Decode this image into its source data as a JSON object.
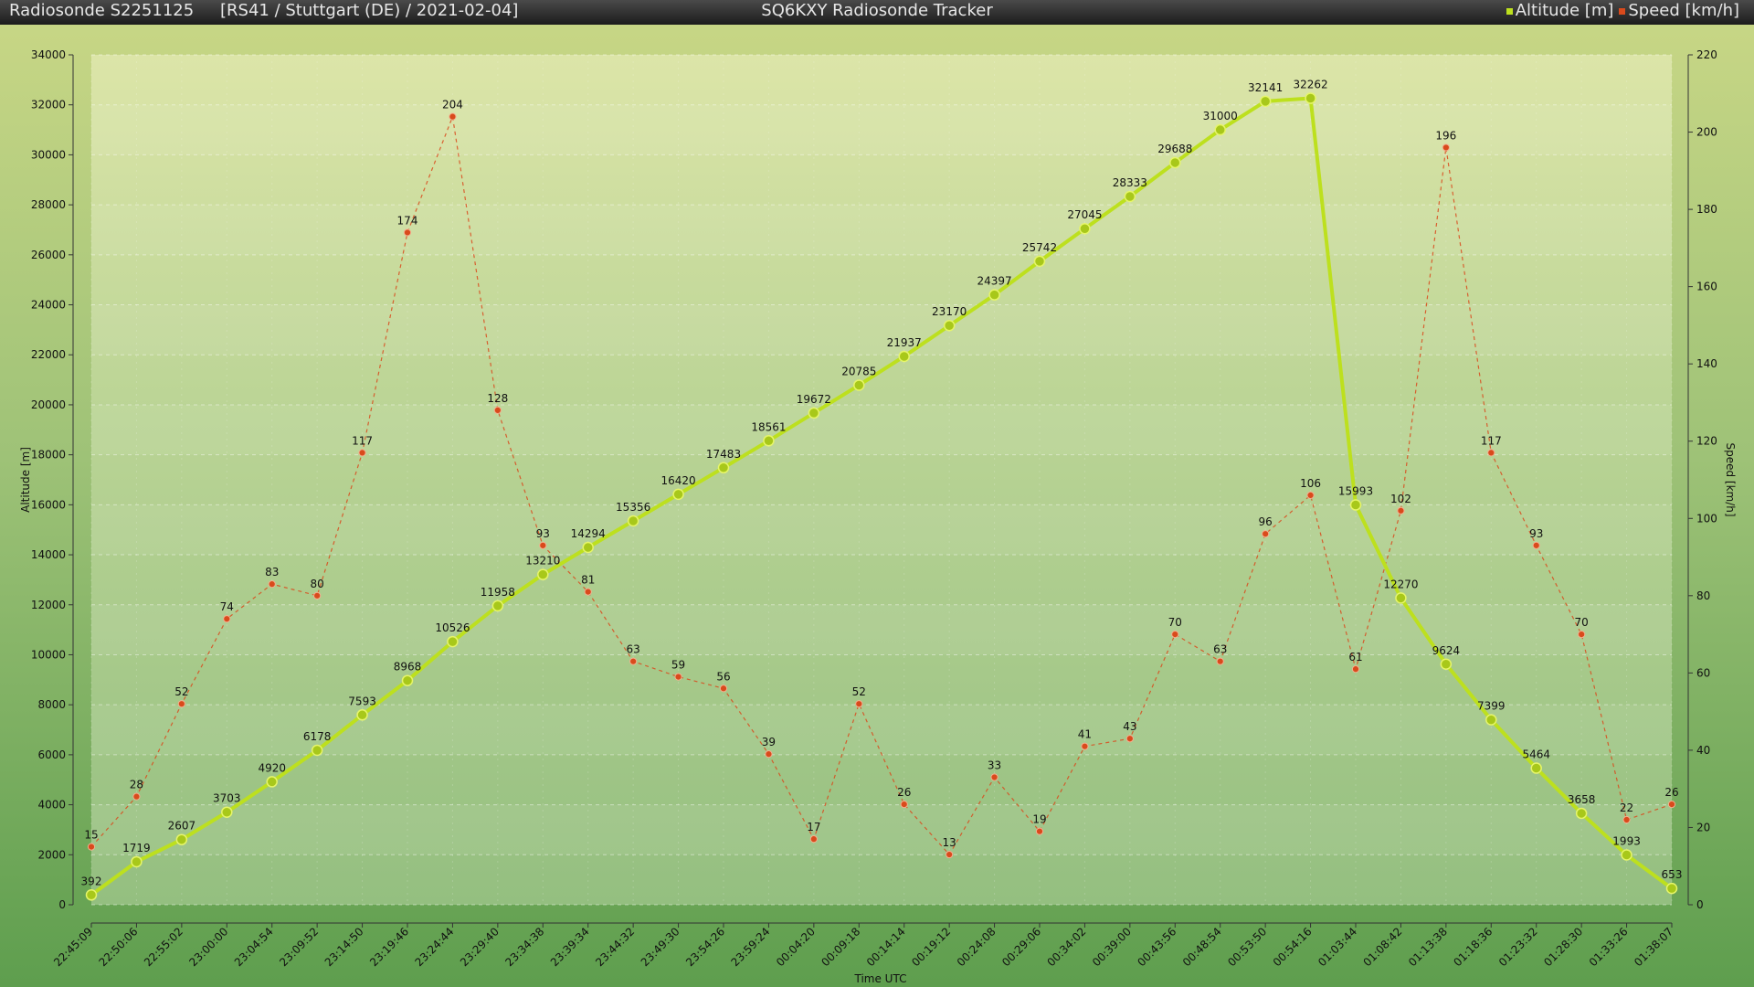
{
  "header": {
    "sonde": "Radiosonde S2251125",
    "info": "[RS41 / Stuttgart (DE) / 2021-02-04]",
    "app_title": "SQ6KXY Radiosonde Tracker"
  },
  "chart_data": {
    "type": "line",
    "xlabel": "Time UTC",
    "ylabel_left": "Altitude [m]",
    "ylabel_right": "Speed [km/h]",
    "ylim_left": [
      0,
      34000
    ],
    "ylim_right": [
      0,
      220
    ],
    "yticks_left": [
      0,
      2000,
      4000,
      6000,
      8000,
      10000,
      12000,
      14000,
      16000,
      18000,
      20000,
      22000,
      24000,
      26000,
      28000,
      30000,
      32000,
      34000
    ],
    "yticks_right": [
      0,
      20,
      40,
      60,
      80,
      100,
      120,
      140,
      160,
      180,
      200,
      220
    ],
    "legend_position": "top-right",
    "categories": [
      "22:45:09",
      "22:50:06",
      "22:55:02",
      "23:00:00",
      "23:04:54",
      "23:09:52",
      "23:14:50",
      "23:19:46",
      "23:24:44",
      "23:29:40",
      "23:34:38",
      "23:39:34",
      "23:44:32",
      "23:49:30",
      "23:54:26",
      "23:59:24",
      "00:04:20",
      "00:09:18",
      "00:14:14",
      "00:19:12",
      "00:24:08",
      "00:29:06",
      "00:34:02",
      "00:39:00",
      "00:43:56",
      "00:48:54",
      "00:53:50",
      "00:54:16",
      "01:03:44",
      "01:08:42",
      "01:13:38",
      "01:18:36",
      "01:23:32",
      "01:28:30",
      "01:33:26",
      "01:38:07"
    ],
    "series": [
      {
        "name": "Altitude [m]",
        "axis": "left",
        "color": "#bde01e",
        "values": [
          392,
          1719,
          2607,
          3703,
          4920,
          6178,
          7593,
          8968,
          10526,
          11958,
          13210,
          14294,
          15356,
          16420,
          17483,
          18561,
          19672,
          20785,
          21937,
          23170,
          24397,
          25742,
          27045,
          28333,
          29688,
          31000,
          32141,
          32262,
          15993,
          12270,
          9624,
          7399,
          5464,
          3658,
          1993,
          653
        ]
      },
      {
        "name": "Speed [km/h]",
        "axis": "right",
        "color": "#d94a1c",
        "values": [
          15,
          28,
          52,
          74,
          83,
          80,
          117,
          174,
          204,
          128,
          93,
          81,
          63,
          59,
          56,
          39,
          17,
          52,
          26,
          13,
          33,
          19,
          41,
          43,
          70,
          63,
          96,
          106,
          61,
          102,
          196,
          117,
          93,
          70,
          22,
          26
        ]
      }
    ]
  }
}
